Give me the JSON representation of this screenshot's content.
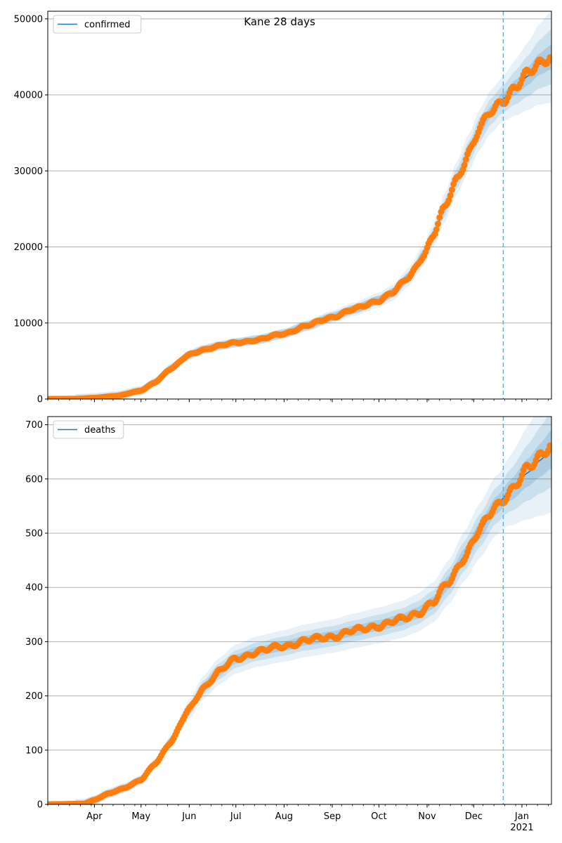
{
  "figure_title": "Kane 28 days",
  "colors": {
    "model_line": "#1f77b4",
    "band": "#1f77b4",
    "observed": "#ff7f0e",
    "forecast_marker": "#6aaed6",
    "grid": "#b0b0b0"
  },
  "x_axis": {
    "start": "2020-03-02",
    "end": "2021-01-20",
    "forecast_start": "2020-12-20",
    "month_ticks": [
      {
        "date": "2020-04-01",
        "label": "Apr"
      },
      {
        "date": "2020-05-01",
        "label": "May"
      },
      {
        "date": "2020-06-01",
        "label": "Jun"
      },
      {
        "date": "2020-07-01",
        "label": "Jul"
      },
      {
        "date": "2020-08-01",
        "label": "Aug"
      },
      {
        "date": "2020-09-01",
        "label": "Sep"
      },
      {
        "date": "2020-10-01",
        "label": "Oct"
      },
      {
        "date": "2020-11-01",
        "label": "Nov"
      },
      {
        "date": "2020-12-01",
        "label": "Dec"
      },
      {
        "date": "2021-01-01",
        "label": "Jan",
        "sublabel": "2021"
      }
    ]
  },
  "chart_data": [
    {
      "type": "line",
      "legend": "confirmed",
      "legend_position": "top-left",
      "ylim": [
        0,
        51000
      ],
      "yticks": [
        0,
        10000,
        20000,
        30000,
        40000,
        50000
      ],
      "grid": "horizontal",
      "knots": [
        [
          "2020-03-02",
          0
        ],
        [
          "2020-03-20",
          20
        ],
        [
          "2020-04-01",
          150
        ],
        [
          "2020-04-15",
          400
        ],
        [
          "2020-05-01",
          1100
        ],
        [
          "2020-05-10",
          2200
        ],
        [
          "2020-05-20",
          4000
        ],
        [
          "2020-06-01",
          5800
        ],
        [
          "2020-06-10",
          6500
        ],
        [
          "2020-06-20",
          7000
        ],
        [
          "2020-07-01",
          7400
        ],
        [
          "2020-07-15",
          7800
        ],
        [
          "2020-08-01",
          8600
        ],
        [
          "2020-08-15",
          9600
        ],
        [
          "2020-09-01",
          10800
        ],
        [
          "2020-09-15",
          11800
        ],
        [
          "2020-10-01",
          13000
        ],
        [
          "2020-10-10",
          14000
        ],
        [
          "2020-10-20",
          16000
        ],
        [
          "2020-10-30",
          19000
        ],
        [
          "2020-11-05",
          21500
        ],
        [
          "2020-11-12",
          25000
        ],
        [
          "2020-11-20",
          29000
        ],
        [
          "2020-11-28",
          32500
        ],
        [
          "2020-12-05",
          35500
        ],
        [
          "2020-12-12",
          37800
        ],
        [
          "2020-12-20",
          39500
        ],
        [
          "2020-12-28",
          41000
        ],
        [
          "2021-01-05",
          42500
        ],
        [
          "2021-01-12",
          44000
        ],
        [
          "2021-01-20",
          45000
        ]
      ],
      "band_widths": [
        0.02,
        0.045,
        0.075
      ],
      "observed_end": "2021-01-19",
      "observed_end_value": 45300
    },
    {
      "type": "line",
      "legend": "deaths",
      "legend_position": "top-left",
      "ylim": [
        0,
        715
      ],
      "yticks": [
        0,
        100,
        200,
        300,
        400,
        500,
        600,
        700
      ],
      "grid": "horizontal",
      "knots": [
        [
          "2020-03-02",
          0
        ],
        [
          "2020-03-25",
          1
        ],
        [
          "2020-04-01",
          8
        ],
        [
          "2020-04-10",
          20
        ],
        [
          "2020-04-20",
          30
        ],
        [
          "2020-05-01",
          45
        ],
        [
          "2020-05-10",
          75
        ],
        [
          "2020-05-20",
          115
        ],
        [
          "2020-06-01",
          175
        ],
        [
          "2020-06-10",
          215
        ],
        [
          "2020-06-20",
          245
        ],
        [
          "2020-07-01",
          268
        ],
        [
          "2020-07-15",
          282
        ],
        [
          "2020-08-01",
          292
        ],
        [
          "2020-08-15",
          302
        ],
        [
          "2020-09-01",
          310
        ],
        [
          "2020-09-15",
          320
        ],
        [
          "2020-10-01",
          330
        ],
        [
          "2020-10-15",
          340
        ],
        [
          "2020-10-25",
          352
        ],
        [
          "2020-11-05",
          372
        ],
        [
          "2020-11-15",
          410
        ],
        [
          "2020-11-25",
          458
        ],
        [
          "2020-12-05",
          505
        ],
        [
          "2020-12-15",
          550
        ],
        [
          "2020-12-25",
          580
        ],
        [
          "2021-01-05",
          612
        ],
        [
          "2021-01-13",
          635
        ],
        [
          "2021-01-20",
          655
        ]
      ],
      "band_widths": [
        0.03,
        0.06,
        0.1
      ],
      "observed_end": "2021-01-19",
      "observed_end_value": 667
    }
  ]
}
